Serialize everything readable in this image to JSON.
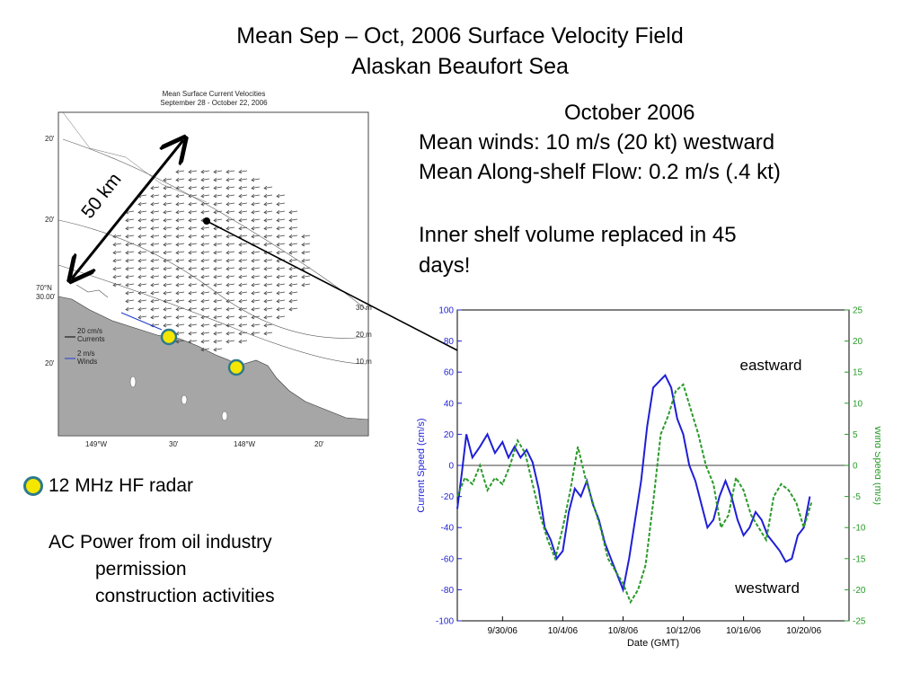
{
  "title": {
    "line1": "Mean Sep – Oct, 2006 Surface Velocity Field",
    "line2": "Alaskan Beaufort Sea"
  },
  "info": {
    "month": "October 2006",
    "winds": "Mean winds: 10 m/s  (20 kt) westward",
    "flow": "Mean Along-shelf Flow: 0.2 m/s (.4 kt)",
    "inner_line1": "Inner shelf volume replaced in 45",
    "inner_line2": "days!"
  },
  "legend": {
    "radar": "12 MHz HF radar",
    "ac_power": "AC Power from oil industry",
    "permission": "permission",
    "construction": "construction activities"
  },
  "map": {
    "title1": "Mean Surface Current Velocities",
    "title2": "September 28 - October 22, 2006",
    "scale_label": "50 km",
    "lat_70": "70°N",
    "lat_30": "30.00'",
    "lat_20": "20'",
    "lon_149": "149°W",
    "lon_30": "30'",
    "lon_148": "148°W",
    "lon_20": "20'",
    "depth_30": "30 m",
    "depth_20": "20 m",
    "depth_10": "10 m",
    "key_currents1": "20 cm/s",
    "key_currents2": "Currents",
    "key_winds1": "2 m/s",
    "key_winds2": "Winds",
    "colors": {
      "land": "#a6a6a6",
      "radar_dot": "#f5e600",
      "radar_ring": "#2e7a8c"
    }
  },
  "chart_data": {
    "type": "line",
    "xlabel": "Date (GMT)",
    "ylabel": "Current Speed (cm/s)",
    "y2label": "Wind Speed (m/s)",
    "ylim": [
      -100,
      100
    ],
    "y2lim": [
      -25,
      25
    ],
    "yticks": [
      -100,
      -80,
      -60,
      -40,
      -20,
      0,
      20,
      40,
      60,
      80,
      100
    ],
    "y2ticks": [
      -25,
      -20,
      -15,
      -10,
      -5,
      0,
      5,
      10,
      15,
      20,
      25
    ],
    "xlim": [
      "9/27/06",
      "10/23/06"
    ],
    "xticks": [
      "9/30/06",
      "10/4/06",
      "10/8/06",
      "10/12/06",
      "10/16/06",
      "10/20/06"
    ],
    "annotations": [
      "eastward",
      "westward"
    ],
    "series": [
      {
        "axis": "left",
        "color": "#1f1fd6",
        "style": "solid",
        "x": [
          27.0,
          27.3,
          27.6,
          28.0,
          28.5,
          29.0,
          29.5,
          30.0,
          30.4,
          30.8,
          31.2,
          31.6,
          32.0,
          32.4,
          32.8,
          33.2,
          33.6,
          34.0,
          34.4,
          34.8,
          35.2,
          35.6,
          36.0,
          36.4,
          36.8,
          37.2,
          37.6,
          38.0,
          38.4,
          38.8,
          39.2,
          39.6,
          40.0,
          40.4,
          40.8,
          41.2,
          41.6,
          42.0,
          42.4,
          42.8,
          43.2,
          43.6,
          44.0,
          44.4,
          44.8,
          45.2,
          45.6,
          46.0,
          46.4,
          46.8,
          47.2,
          47.6,
          48.0,
          48.4,
          48.8,
          49.2,
          49.6,
          50.0,
          50.4
        ],
        "y": [
          -28,
          -5,
          20,
          5,
          12,
          20,
          8,
          15,
          5,
          12,
          5,
          10,
          2,
          -15,
          -40,
          -48,
          -60,
          -55,
          -30,
          -15,
          -20,
          -10,
          -25,
          -35,
          -50,
          -60,
          -70,
          -80,
          -60,
          -35,
          -10,
          25,
          50,
          54,
          58,
          50,
          30,
          20,
          0,
          -10,
          -25,
          -40,
          -35,
          -20,
          -10,
          -20,
          -35,
          -45,
          -40,
          -30,
          -35,
          -45,
          -50,
          -55,
          -62,
          -60,
          -45,
          -40,
          -20
        ]
      },
      {
        "axis": "right",
        "color": "#2a9a2a",
        "style": "dashed",
        "x": [
          27.0,
          27.5,
          28.0,
          28.5,
          29.0,
          29.5,
          30.0,
          30.5,
          31.0,
          31.5,
          32.0,
          32.5,
          33.0,
          33.5,
          34.0,
          34.5,
          35.0,
          35.5,
          36.0,
          36.5,
          37.0,
          37.5,
          38.0,
          38.5,
          39.0,
          39.5,
          40.0,
          40.5,
          41.0,
          41.5,
          42.0,
          42.5,
          43.0,
          43.5,
          44.0,
          44.5,
          45.0,
          45.5,
          46.0,
          46.5,
          47.0,
          47.5,
          48.0,
          48.5,
          49.0,
          49.5,
          50.0,
          50.5
        ],
        "y": [
          -5,
          -2,
          -3,
          0,
          -4,
          -2,
          -3,
          0,
          4,
          2,
          -3,
          -8,
          -12,
          -15,
          -10,
          -4,
          3,
          -2,
          -6,
          -10,
          -15,
          -17,
          -19,
          -22,
          -20,
          -16,
          -6,
          5,
          8,
          12,
          13,
          9,
          5,
          0,
          -3,
          -10,
          -8,
          -2,
          -4,
          -8,
          -10,
          -12,
          -5,
          -3,
          -4,
          -6,
          -10,
          -6
        ]
      }
    ]
  }
}
